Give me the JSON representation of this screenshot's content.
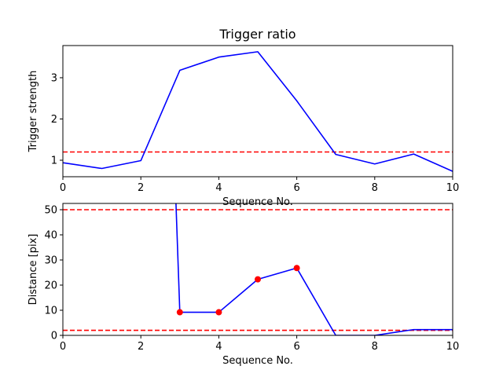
{
  "colors": {
    "line": "#0000ff",
    "threshold": "#ff0000",
    "marker": "#ff0000",
    "axes": "#000000",
    "background": "#ffffff"
  },
  "chart_data": [
    {
      "type": "line",
      "title": "Trigger ratio",
      "xlabel": "Sequence No.",
      "ylabel": "Trigger strength",
      "xlim": [
        0,
        10
      ],
      "ylim": [
        0.6,
        3.78
      ],
      "xticks": [
        0,
        2,
        4,
        6,
        8,
        10
      ],
      "yticks": [
        1,
        2,
        3
      ],
      "grid": false,
      "series": [
        {
          "x": [
            0,
            1,
            2,
            3,
            4,
            5,
            6,
            7,
            8,
            9,
            10
          ],
          "y": [
            0.94,
            0.8,
            0.99,
            3.18,
            3.5,
            3.63,
            2.44,
            1.14,
            0.91,
            1.15,
            0.73
          ]
        }
      ],
      "hlines": [
        1.2
      ]
    },
    {
      "type": "line",
      "title": "",
      "xlabel": "Sequence No.",
      "ylabel": "Distance [pix]",
      "xlim": [
        0,
        10
      ],
      "ylim": [
        0,
        52.5
      ],
      "xticks": [
        0,
        2,
        4,
        6,
        8,
        10
      ],
      "yticks": [
        0,
        10,
        20,
        30,
        40,
        50
      ],
      "grid": false,
      "series": [
        {
          "x": [
            2.9,
            3,
            4,
            5,
            6,
            7,
            8,
            9,
            10
          ],
          "y": [
            53,
            9.2,
            9.2,
            22.3,
            26.8,
            0,
            0,
            2.3,
            2.3
          ]
        }
      ],
      "markers": {
        "x": [
          3,
          4,
          5,
          6
        ],
        "y": [
          9.2,
          9.2,
          22.3,
          26.8
        ]
      },
      "hlines": [
        50,
        2
      ]
    }
  ]
}
